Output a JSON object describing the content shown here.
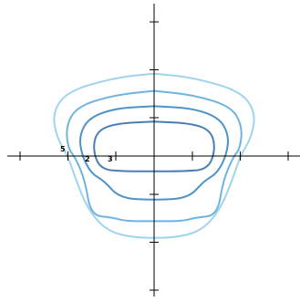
{
  "chart_data": {
    "type": "line",
    "title": "",
    "xlabel": "",
    "ylabel": "",
    "xlim": [
      -8,
      8
    ],
    "ylim": [
      -8,
      8
    ],
    "grid": false,
    "tick_labels": [
      "5",
      "2",
      "3"
    ],
    "x_ticks": [
      -7,
      -4.5,
      -2,
      2,
      4.5,
      7
    ],
    "y_ticks": [
      7,
      4.5,
      2,
      -2,
      -4.5,
      -7
    ],
    "series": [
      {
        "color": "#9ed4ee",
        "x": [
          0,
          2,
          4.5,
          5.3,
          5.1,
          4.5,
          4.1,
          3.5,
          2.6,
          1.5,
          0,
          -1.5,
          -2.6,
          -3.5,
          -4.1,
          -4.5,
          -5.1,
          -5.3,
          -4.5,
          -2,
          0
        ],
        "y": [
          4.3,
          4.1,
          3.4,
          2.3,
          1.0,
          0,
          -1.2,
          -2.7,
          -3.8,
          -4.2,
          -4.3,
          -4.2,
          -3.8,
          -2.7,
          -1.2,
          0,
          1.0,
          2.3,
          3.4,
          4.1,
          4.3
        ]
      },
      {
        "color": "#6fb3df",
        "x": [
          0,
          2,
          4.0,
          4.6,
          4.5,
          4.1,
          3.6,
          3.3,
          2.2,
          1.5,
          0,
          -1.5,
          -2.2,
          -3.3,
          -3.6,
          -4.1,
          -4.5,
          -4.6,
          -4.0,
          -2,
          0
        ],
        "y": [
          3.4,
          3.2,
          2.6,
          1.6,
          0.4,
          -0.1,
          -1.3,
          -3.1,
          -3.2,
          -3.4,
          -3.4,
          -3.4,
          -3.2,
          -3.1,
          -1.3,
          -0.1,
          0.4,
          1.6,
          2.6,
          3.2,
          3.4
        ]
      },
      {
        "color": "#4d93c8",
        "x": [
          0,
          2,
          3.4,
          3.9,
          3.8,
          3.3,
          2.6,
          1.8,
          0,
          -1.8,
          -2.6,
          -3.3,
          -3.8,
          -3.9,
          -3.4,
          -2,
          0
        ],
        "y": [
          2.6,
          2.5,
          2.0,
          1.1,
          0.1,
          -0.9,
          -1.3,
          -2.2,
          -2.3,
          -2.2,
          -1.3,
          -0.9,
          0.1,
          1.1,
          2.0,
          2.5,
          2.6
        ]
      },
      {
        "color": "#4a7db4",
        "x": [
          0,
          2,
          3.0,
          3.2,
          2.8,
          1.5,
          0,
          -1.5,
          -2.8,
          -3.2,
          -3.0,
          -2,
          0
        ],
        "y": [
          1.8,
          1.7,
          1.3,
          0.3,
          -0.7,
          -0.8,
          -0.8,
          -0.8,
          -0.7,
          0.3,
          1.3,
          1.7,
          1.8
        ]
      }
    ]
  }
}
